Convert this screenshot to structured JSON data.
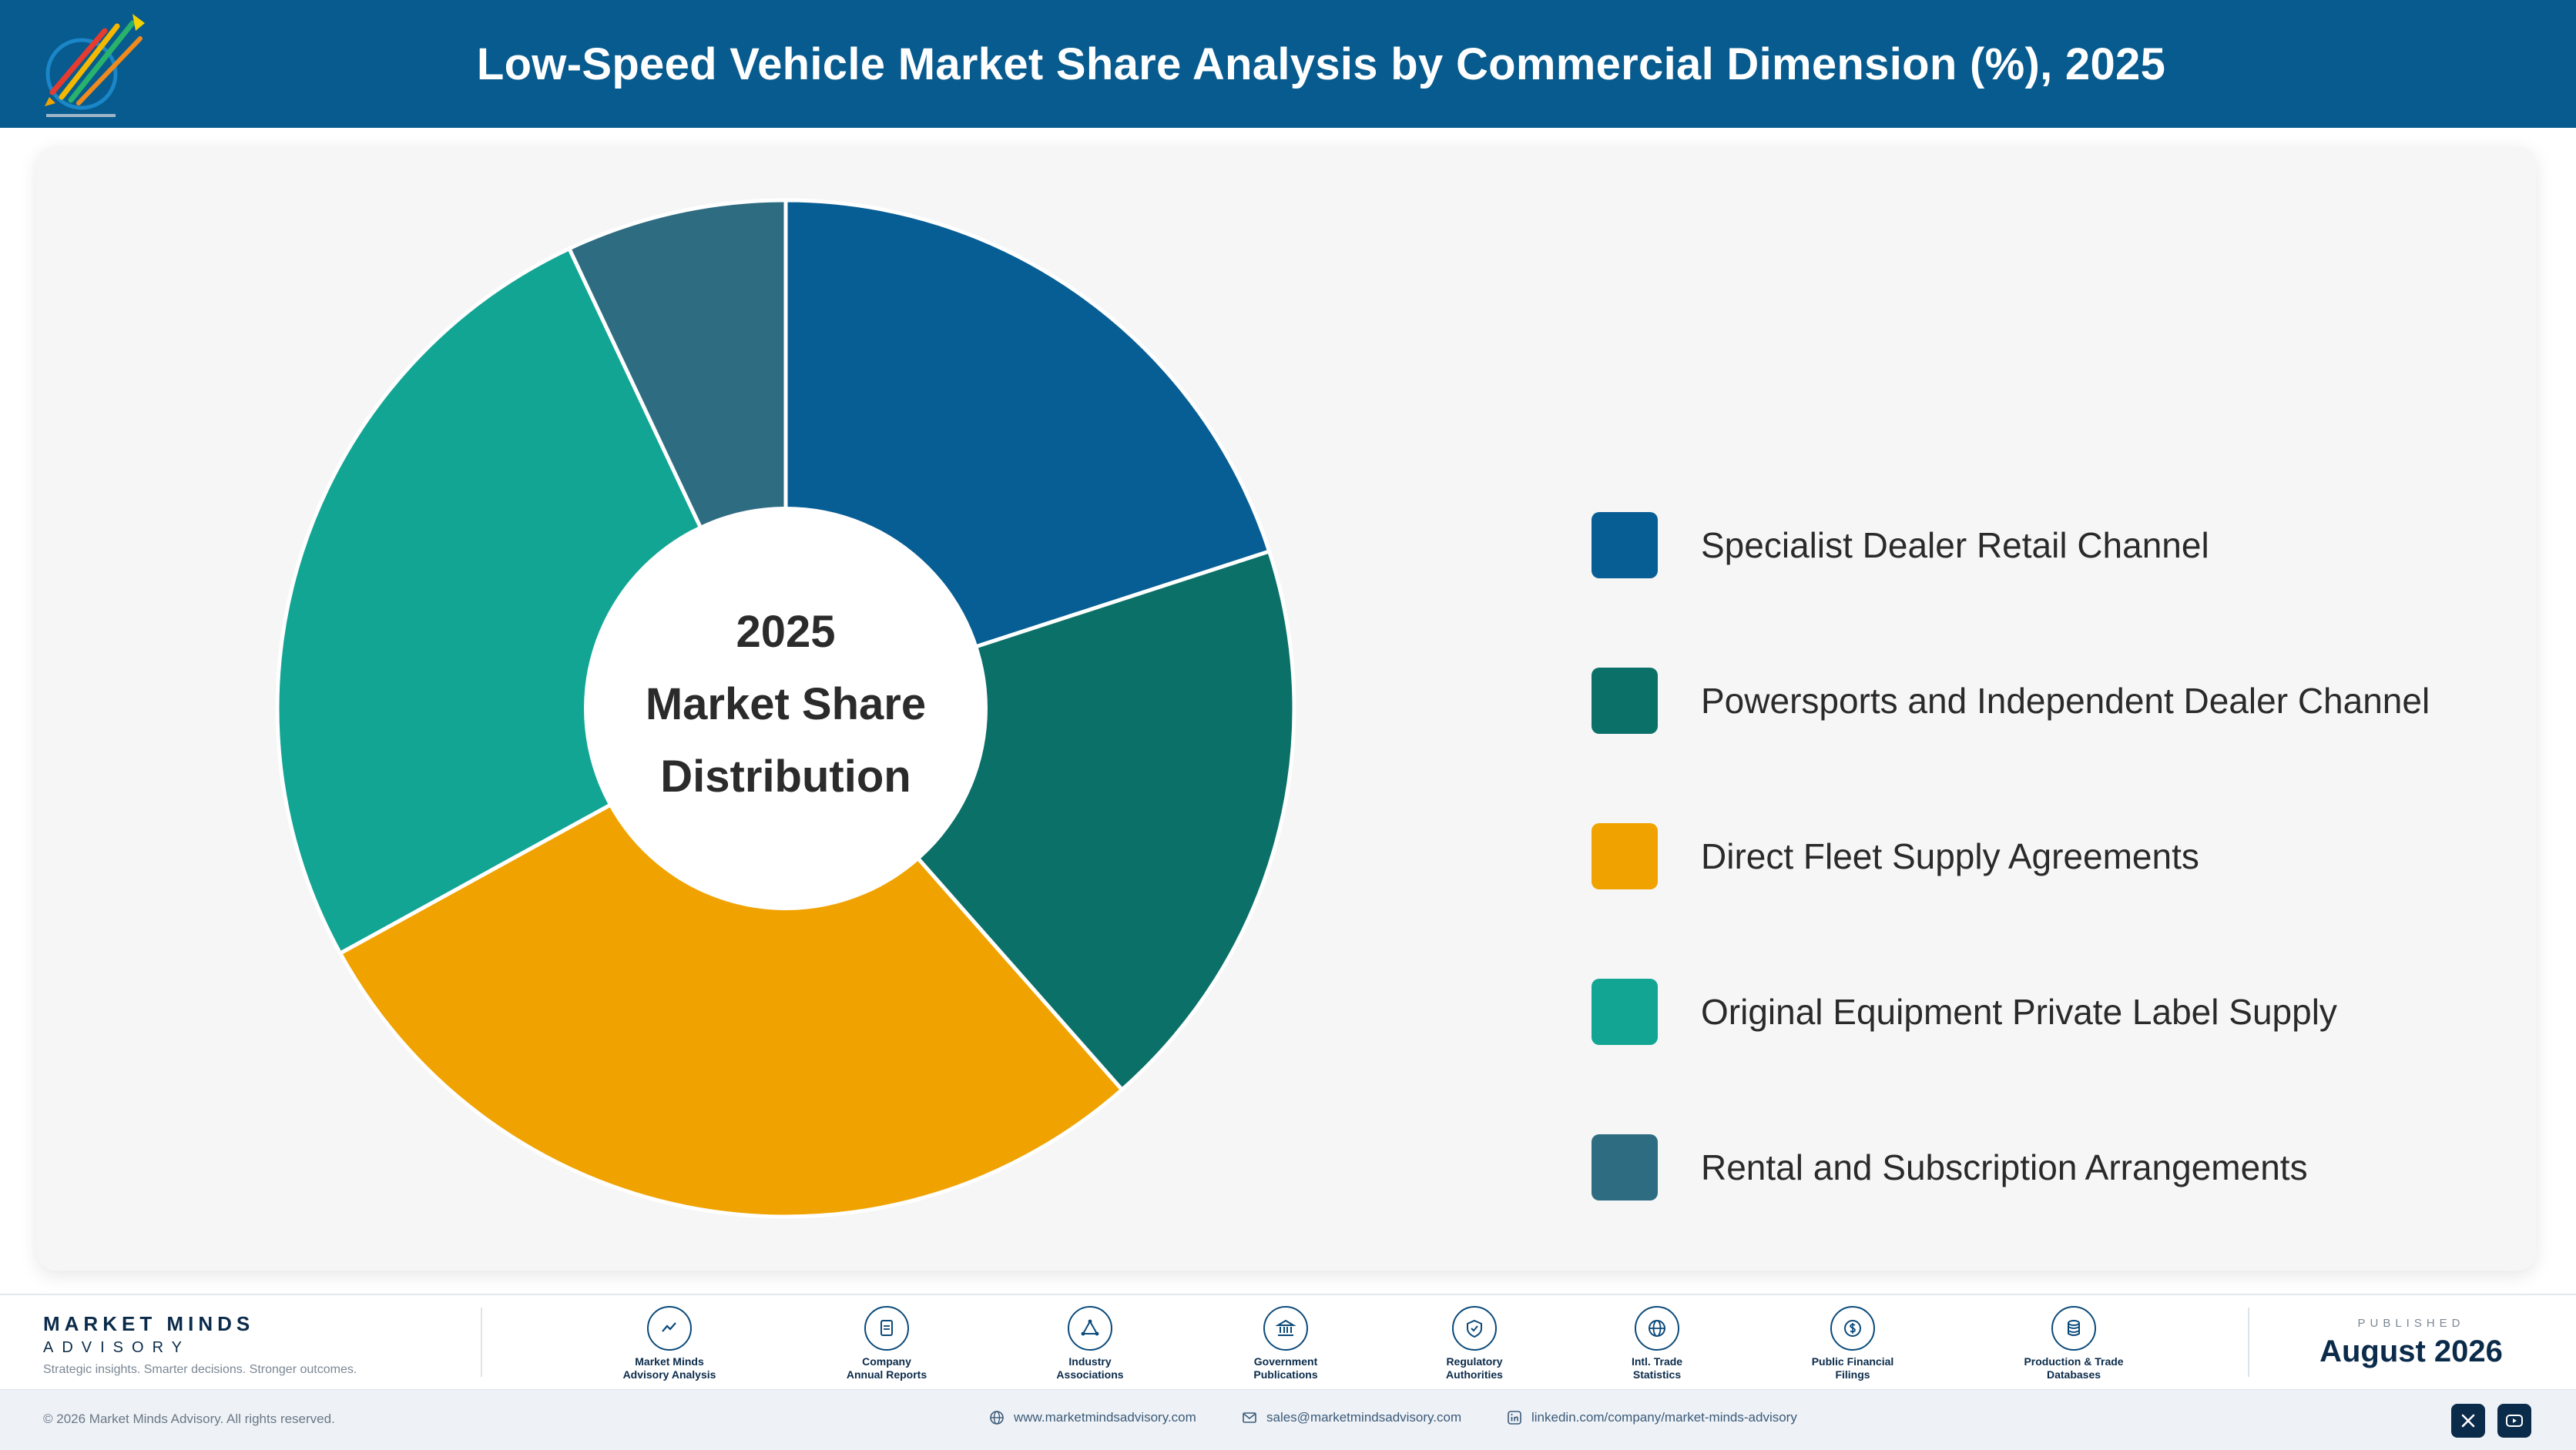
{
  "header": {
    "title": "Low-Speed Vehicle Market Share Analysis by Commercial Dimension (%), 2025"
  },
  "chart_data": {
    "type": "pie",
    "style": "donut",
    "center_label": [
      "2025",
      "Market Share",
      "Distribution"
    ],
    "categories": [
      "Specialist Dealer Retail Channel",
      "Powersports and Independent Dealer Channel",
      "Direct Fleet Supply Agreements",
      "Original Equipment Private Label Supply",
      "Rental and Subscription Arrangements"
    ],
    "values": [
      20.0,
      18.5,
      28.5,
      26.0,
      7.0
    ],
    "colors": [
      "#075e94",
      "#0b7168",
      "#f0a300",
      "#12a594",
      "#2e6c82"
    ],
    "legend_position": "right"
  },
  "footer": {
    "brand_name": "MARKET MINDS",
    "brand_sub": "ADVISORY",
    "tagline": "Strategic insights. Smarter decisions. Stronger outcomes.",
    "sources": [
      {
        "label": "Market Minds\nAdvisory Analysis",
        "icon": "chart-line-icon"
      },
      {
        "label": "Company\nAnnual Reports",
        "icon": "document-icon"
      },
      {
        "label": "Industry\nAssociations",
        "icon": "network-icon"
      },
      {
        "label": "Government\nPublications",
        "icon": "building-icon"
      },
      {
        "label": "Regulatory\nAuthorities",
        "icon": "shield-icon"
      },
      {
        "label": "Intl. Trade\nStatistics",
        "icon": "globe-icon"
      },
      {
        "label": "Public Financial\nFilings",
        "icon": "dollar-icon"
      },
      {
        "label": "Production & Trade\nDatabases",
        "icon": "database-icon"
      }
    ],
    "published_label": "PUBLISHED",
    "published_date": "August 2026"
  },
  "bottom_bar": {
    "copyright": "© 2026 Market Minds Advisory. All rights reserved.",
    "website": "www.marketmindsadvisory.com",
    "email": "sales@marketmindsadvisory.com",
    "linkedin": "linkedin.com/company/market-minds-advisory"
  }
}
